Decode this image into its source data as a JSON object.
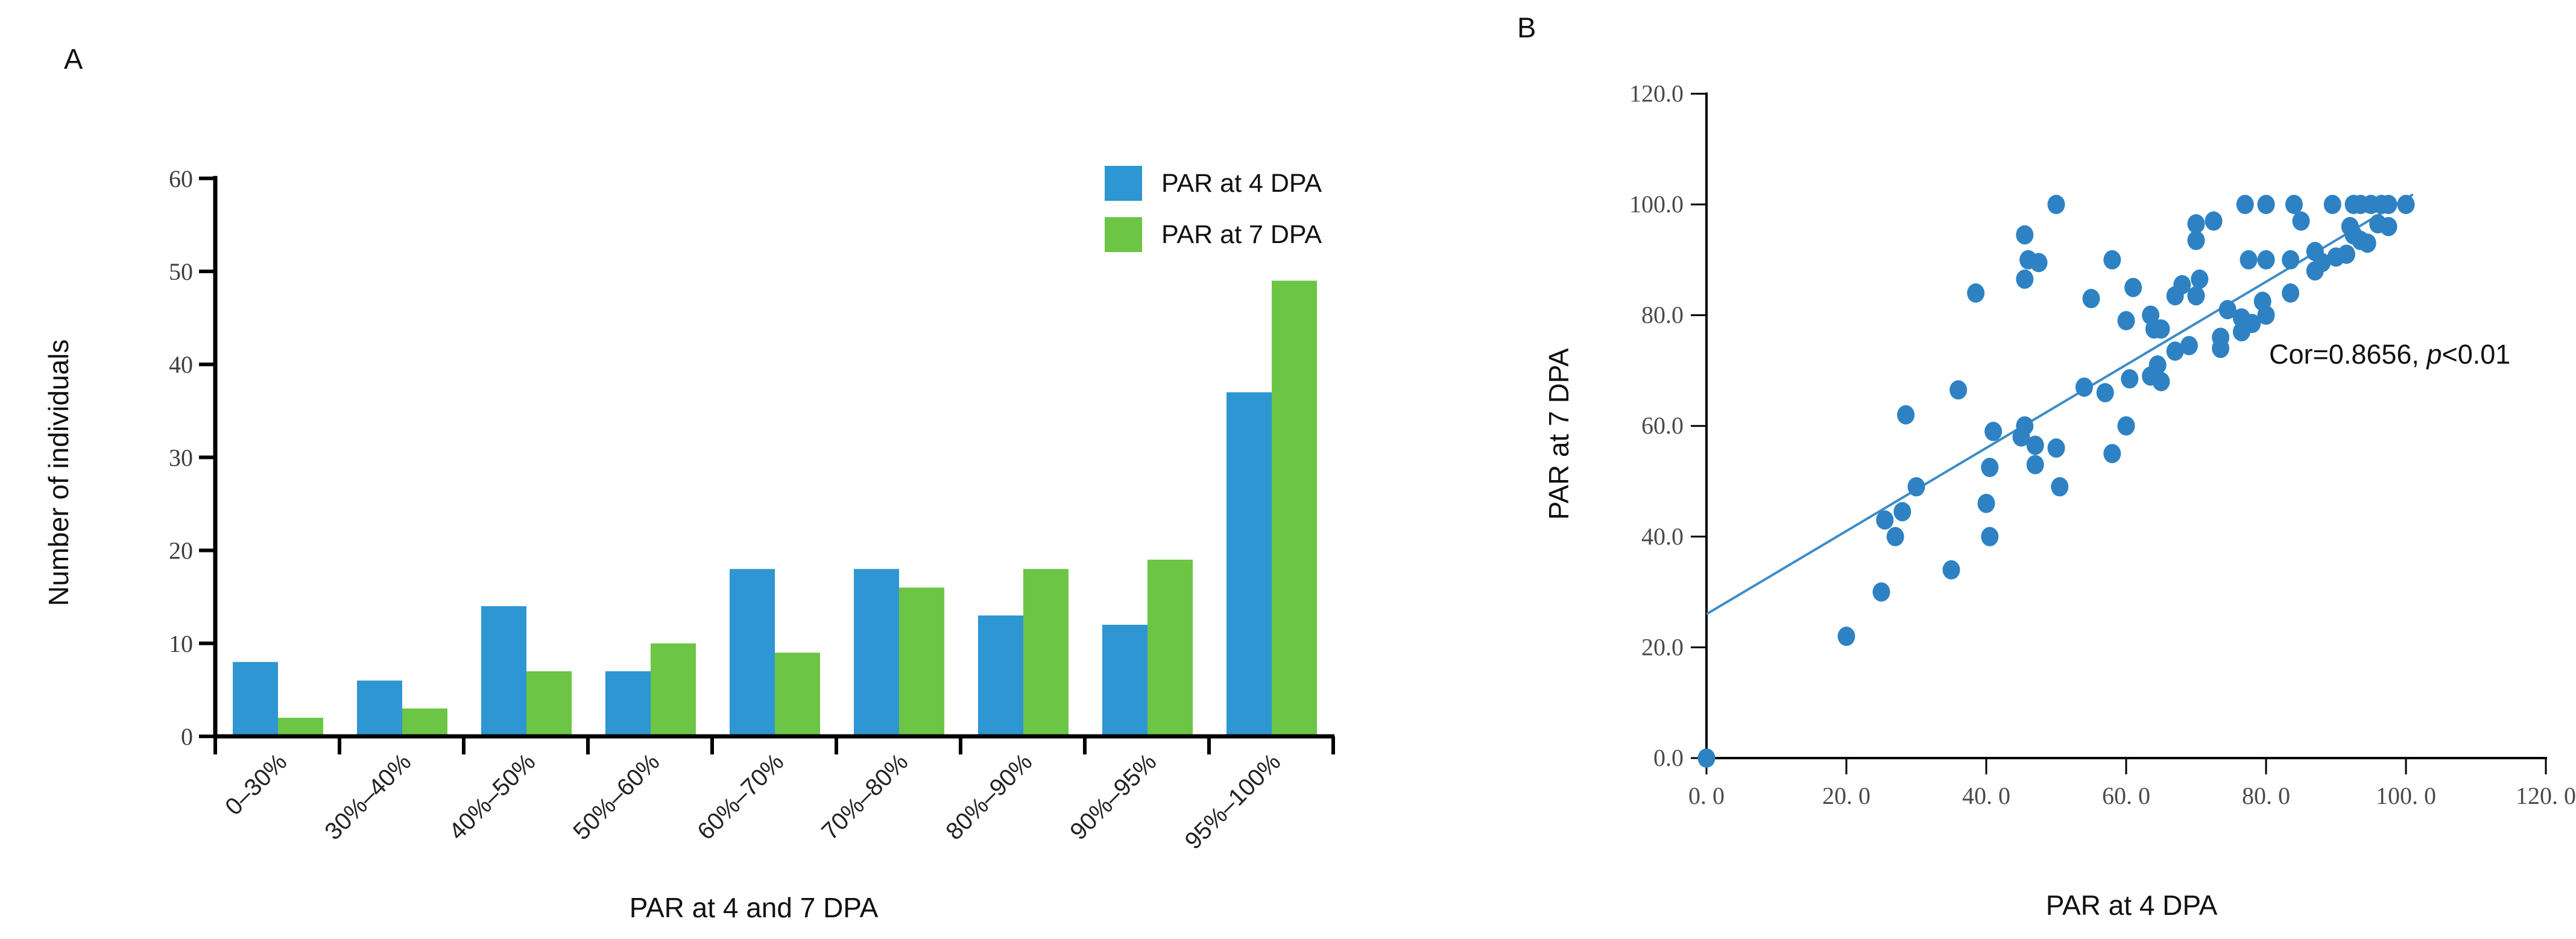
{
  "figure": {
    "panel_a_letter": "A",
    "panel_b_letter": "B"
  },
  "colors": {
    "bar_blue": "#2E96D2",
    "bar_green": "#6CC544",
    "scatter_blue": "#2E82C3",
    "trend_line": "#3E8CC7",
    "axis": "#000000",
    "tick_text_a": "#3d3d3d",
    "tick_text_b": "#4a4a4a"
  },
  "chart_data": [
    {
      "type": "bar",
      "panel": "A",
      "title": "",
      "xlabel": "PAR at 4 and 7 DPA",
      "ylabel": "Number of individuals",
      "categories": [
        "0–30%",
        "30%–40%",
        "40%–50%",
        "50%–60%",
        "60%–70%",
        "70%–80%",
        "80%–90%",
        "90%–95%",
        "95%–100%"
      ],
      "series": [
        {
          "name": "PAR at 4 DPA",
          "color": "#2E96D2",
          "values": [
            8,
            6,
            14,
            7,
            18,
            18,
            13,
            12,
            37
          ]
        },
        {
          "name": "PAR at 7 DPA",
          "color": "#6CC544",
          "values": [
            2,
            3,
            7,
            10,
            9,
            16,
            18,
            19,
            49
          ]
        }
      ],
      "ylim": [
        0,
        60
      ],
      "y_ticks": [
        0,
        10,
        20,
        30,
        40,
        50,
        60
      ],
      "grid": false,
      "legend_position": "top-right"
    },
    {
      "type": "scatter",
      "panel": "B",
      "title": "",
      "xlabel": "PAR at 4 DPA",
      "ylabel": "PAR at 7 DPA",
      "xlim": [
        0,
        120
      ],
      "ylim": [
        0,
        120
      ],
      "x_tick_labels": [
        "0. 0",
        "20. 0",
        "40. 0",
        "60. 0",
        "80. 0",
        "100. 0",
        "120. 0"
      ],
      "y_tick_labels": [
        "0.0",
        "20.0",
        "40.0",
        "60.0",
        "80.0",
        "100.0",
        "120.0"
      ],
      "x_tick_values": [
        0,
        20,
        40,
        60,
        80,
        100,
        120
      ],
      "y_tick_values": [
        0,
        20,
        40,
        60,
        80,
        100,
        120
      ],
      "grid": false,
      "annotation": {
        "text_normal": "Cor=0.8656, ",
        "text_italic": "p",
        "text_after": "<0.01"
      },
      "trendline": {
        "x1": 0,
        "y1": 26,
        "x2": 101,
        "y2": 101.8
      },
      "points": [
        [
          0,
          0
        ],
        [
          20,
          22
        ],
        [
          25,
          30
        ],
        [
          35,
          34
        ],
        [
          27,
          40
        ],
        [
          40.5,
          40
        ],
        [
          25.5,
          43
        ],
        [
          28,
          44.5
        ],
        [
          40,
          46
        ],
        [
          30,
          49
        ],
        [
          50.5,
          49
        ],
        [
          40.5,
          52.5
        ],
        [
          47,
          53
        ],
        [
          47,
          56.5
        ],
        [
          50,
          56
        ],
        [
          58,
          55
        ],
        [
          41,
          59
        ],
        [
          45,
          58
        ],
        [
          45.5,
          60
        ],
        [
          60,
          60
        ],
        [
          28.5,
          62
        ],
        [
          36,
          66.5
        ],
        [
          54,
          67
        ],
        [
          57,
          66
        ],
        [
          60.5,
          68.5
        ],
        [
          63.5,
          69
        ],
        [
          65,
          68
        ],
        [
          64.5,
          71
        ],
        [
          67,
          73.5
        ],
        [
          69,
          74.5
        ],
        [
          73.5,
          74
        ],
        [
          73.5,
          76
        ],
        [
          76.5,
          77
        ],
        [
          64,
          77.5
        ],
        [
          76.5,
          79.5
        ],
        [
          78,
          78.5
        ],
        [
          79.5,
          82.5
        ],
        [
          80,
          80
        ],
        [
          74.5,
          81
        ],
        [
          67,
          83.5
        ],
        [
          70,
          83.5
        ],
        [
          63.5,
          80
        ],
        [
          65,
          77.5
        ],
        [
          68,
          85.5
        ],
        [
          70.5,
          86.5
        ],
        [
          83.5,
          84
        ],
        [
          55,
          83
        ],
        [
          61,
          85
        ],
        [
          38.5,
          84
        ],
        [
          45.5,
          86.5
        ],
        [
          58,
          90
        ],
        [
          46,
          90
        ],
        [
          47.5,
          89.5
        ],
        [
          60,
          79
        ],
        [
          77.5,
          90
        ],
        [
          80,
          90
        ],
        [
          83.5,
          90
        ],
        [
          87,
          91.5
        ],
        [
          88,
          89.5
        ],
        [
          90,
          90.5
        ],
        [
          91.5,
          91
        ],
        [
          87,
          88
        ],
        [
          70,
          93.5
        ],
        [
          92.5,
          94.5
        ],
        [
          93.5,
          93.5
        ],
        [
          94.5,
          93
        ],
        [
          45.5,
          94.5
        ],
        [
          70,
          96.5
        ],
        [
          72.5,
          97
        ],
        [
          85,
          97
        ],
        [
          92,
          96
        ],
        [
          96,
          96.5
        ],
        [
          97.5,
          96
        ],
        [
          50,
          100
        ],
        [
          77,
          100
        ],
        [
          80,
          100
        ],
        [
          84,
          100
        ],
        [
          89.5,
          100
        ],
        [
          92.5,
          100
        ],
        [
          93.5,
          100
        ],
        [
          95,
          100
        ],
        [
          96.5,
          100
        ],
        [
          97.5,
          100
        ],
        [
          100,
          100
        ]
      ]
    }
  ]
}
